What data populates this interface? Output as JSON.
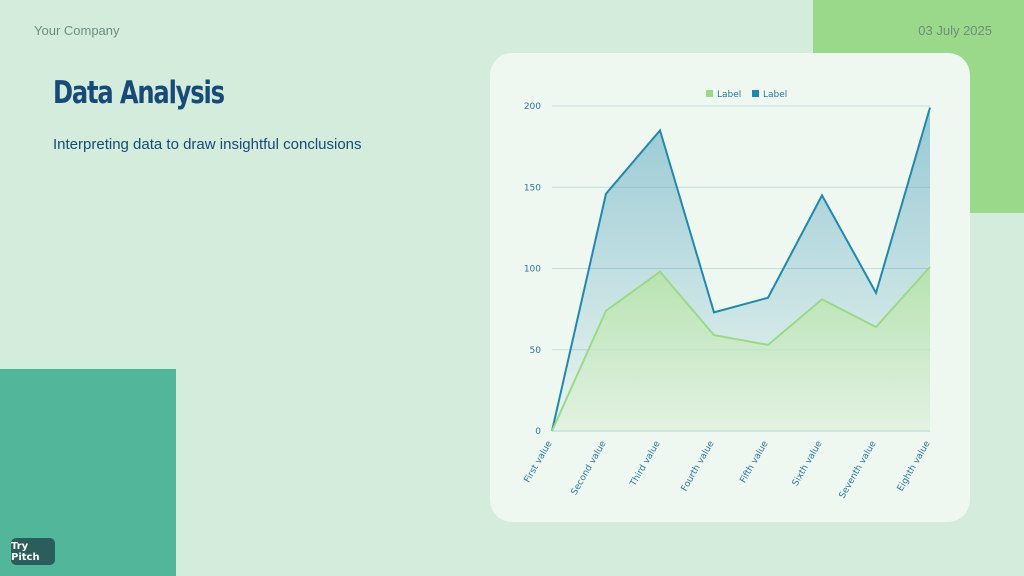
{
  "header": {
    "company": "Your Company",
    "date": "03 July 2025"
  },
  "main": {
    "title": "Data Analysis",
    "subtitle": "Interpreting data to draw insightful conclusions"
  },
  "footer": {
    "button_label": "Try Pitch"
  },
  "colors": {
    "background": "#d3ecdc",
    "green_series": "#9bd98a",
    "blue_series": "#2189ad",
    "title": "#174a78"
  },
  "chart_data": {
    "type": "area",
    "categories": [
      "First value",
      "Second value",
      "Third value",
      "Fourth value",
      "Fifth value",
      "Sixth value",
      "Seventh value",
      "Eighth value"
    ],
    "series": [
      {
        "name": "Label",
        "color": "#9bd98a",
        "values": [
          0,
          74,
          98,
          59,
          53,
          81,
          64,
          101
        ]
      },
      {
        "name": "Label",
        "color": "#2189ad",
        "values": [
          0,
          146,
          185,
          73,
          82,
          145,
          85,
          199
        ]
      }
    ],
    "yticks": [
      "0",
      "50",
      "100",
      "150",
      "200"
    ],
    "ylim": [
      0,
      200
    ],
    "grid": true,
    "legend": "top-center"
  }
}
